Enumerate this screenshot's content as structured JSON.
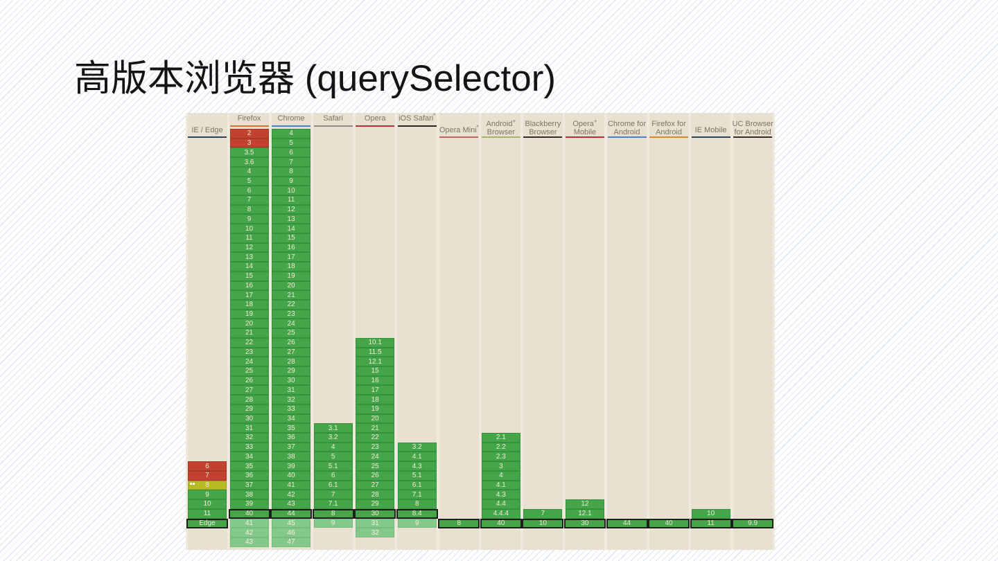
{
  "slide": {
    "title": "高版本浏览器 (querySelector)"
  },
  "table": {
    "feature": "querySelector",
    "status_colors": {
      "supported": "#45a549",
      "future": "#84c88a",
      "not_supported": "#c2422f",
      "partial": "#b6ba25",
      "current_border": "#1e1e1e",
      "lane": "#e8e1d1",
      "base": "#f0eadd",
      "header_text": "#7c7365"
    },
    "columns": [
      {
        "id": "ie-edge",
        "lines": [
          "IE / Edge"
        ],
        "sup": "",
        "underline": "#2a4058",
        "hstyle": "mid",
        "cells": [
          [
            "6",
            36,
            "n"
          ],
          [
            "7",
            37,
            "n"
          ],
          [
            "8",
            38,
            "p",
            "notes"
          ],
          [
            "9",
            39,
            "y"
          ],
          [
            "10",
            40,
            "y"
          ],
          [
            "11",
            41,
            "y"
          ],
          [
            "Edge",
            42,
            "cy"
          ]
        ]
      },
      {
        "id": "firefox",
        "lines": [
          "Firefox"
        ],
        "sup": "",
        "underline": "#d9702c",
        "hstyle": "top",
        "cells": [
          [
            "2",
            1,
            "n"
          ],
          [
            "3",
            2,
            "n"
          ],
          [
            "3.5",
            3,
            "y"
          ],
          [
            "3.6",
            4,
            "y"
          ],
          [
            "4",
            5,
            "y"
          ],
          [
            "5",
            6,
            "y"
          ],
          [
            "6",
            7,
            "y"
          ],
          [
            "7",
            8,
            "y"
          ],
          [
            "8",
            9,
            "y"
          ],
          [
            "9",
            10,
            "y"
          ],
          [
            "10",
            11,
            "y"
          ],
          [
            "11",
            12,
            "y"
          ],
          [
            "12",
            13,
            "y"
          ],
          [
            "13",
            14,
            "y"
          ],
          [
            "14",
            15,
            "y"
          ],
          [
            "15",
            16,
            "y"
          ],
          [
            "16",
            17,
            "y"
          ],
          [
            "17",
            18,
            "y"
          ],
          [
            "18",
            19,
            "y"
          ],
          [
            "19",
            20,
            "y"
          ],
          [
            "20",
            21,
            "y"
          ],
          [
            "21",
            22,
            "y"
          ],
          [
            "22",
            23,
            "y"
          ],
          [
            "23",
            24,
            "y"
          ],
          [
            "24",
            25,
            "y"
          ],
          [
            "25",
            26,
            "y"
          ],
          [
            "26",
            27,
            "y"
          ],
          [
            "27",
            28,
            "y"
          ],
          [
            "28",
            29,
            "y"
          ],
          [
            "29",
            30,
            "y"
          ],
          [
            "30",
            31,
            "y"
          ],
          [
            "31",
            32,
            "y"
          ],
          [
            "32",
            33,
            "y"
          ],
          [
            "33",
            34,
            "y"
          ],
          [
            "34",
            35,
            "y"
          ],
          [
            "35",
            36,
            "y"
          ],
          [
            "36",
            37,
            "y"
          ],
          [
            "37",
            38,
            "y"
          ],
          [
            "38",
            39,
            "y"
          ],
          [
            "39",
            40,
            "y"
          ],
          [
            "40",
            41,
            "cy"
          ],
          [
            "41",
            42,
            "f"
          ],
          [
            "42",
            43,
            "f"
          ],
          [
            "43",
            44,
            "f"
          ]
        ]
      },
      {
        "id": "chrome",
        "lines": [
          "Chrome"
        ],
        "sup": "",
        "underline": "#4a81c4",
        "hstyle": "top",
        "cells": [
          [
            "4",
            1,
            "y"
          ],
          [
            "5",
            2,
            "y"
          ],
          [
            "6",
            3,
            "y"
          ],
          [
            "7",
            4,
            "y"
          ],
          [
            "8",
            5,
            "y"
          ],
          [
            "9",
            6,
            "y"
          ],
          [
            "10",
            7,
            "y"
          ],
          [
            "11",
            8,
            "y"
          ],
          [
            "12",
            9,
            "y"
          ],
          [
            "13",
            10,
            "y"
          ],
          [
            "14",
            11,
            "y"
          ],
          [
            "15",
            12,
            "y"
          ],
          [
            "16",
            13,
            "y"
          ],
          [
            "17",
            14,
            "y"
          ],
          [
            "18",
            15,
            "y"
          ],
          [
            "19",
            16,
            "y"
          ],
          [
            "20",
            17,
            "y"
          ],
          [
            "21",
            18,
            "y"
          ],
          [
            "22",
            19,
            "y"
          ],
          [
            "23",
            20,
            "y"
          ],
          [
            "24",
            21,
            "y"
          ],
          [
            "25",
            22,
            "y"
          ],
          [
            "26",
            23,
            "y"
          ],
          [
            "27",
            24,
            "y"
          ],
          [
            "28",
            25,
            "y"
          ],
          [
            "29",
            26,
            "y"
          ],
          [
            "30",
            27,
            "y"
          ],
          [
            "31",
            28,
            "y"
          ],
          [
            "32",
            29,
            "y"
          ],
          [
            "33",
            30,
            "y"
          ],
          [
            "34",
            31,
            "y"
          ],
          [
            "35",
            32,
            "y"
          ],
          [
            "36",
            33,
            "y"
          ],
          [
            "37",
            34,
            "y"
          ],
          [
            "38",
            35,
            "y"
          ],
          [
            "39",
            36,
            "y"
          ],
          [
            "40",
            37,
            "y"
          ],
          [
            "41",
            38,
            "y"
          ],
          [
            "42",
            39,
            "y"
          ],
          [
            "43",
            40,
            "y"
          ],
          [
            "44",
            41,
            "cy"
          ],
          [
            "45",
            42,
            "f"
          ],
          [
            "46",
            43,
            "f"
          ],
          [
            "47",
            44,
            "f"
          ]
        ]
      },
      {
        "id": "safari",
        "lines": [
          "Safari"
        ],
        "sup": "",
        "underline": "#8b8b8b",
        "hstyle": "top",
        "cells": [
          [
            "3.1",
            32,
            "y"
          ],
          [
            "3.2",
            33,
            "y"
          ],
          [
            "4",
            34,
            "y"
          ],
          [
            "5",
            35,
            "y"
          ],
          [
            "5.1",
            36,
            "y"
          ],
          [
            "6",
            37,
            "y"
          ],
          [
            "6.1",
            38,
            "y"
          ],
          [
            "7",
            39,
            "y"
          ],
          [
            "7.1",
            40,
            "y"
          ],
          [
            "8",
            41,
            "cy"
          ],
          [
            "9",
            42,
            "f"
          ]
        ]
      },
      {
        "id": "opera",
        "lines": [
          "Opera"
        ],
        "sup": "",
        "underline": "#ab3530",
        "hstyle": "top",
        "cells": [
          [
            "10.1",
            23,
            "y"
          ],
          [
            "11.5",
            24,
            "y"
          ],
          [
            "12.1",
            25,
            "y"
          ],
          [
            "15",
            26,
            "y"
          ],
          [
            "16",
            27,
            "y"
          ],
          [
            "17",
            28,
            "y"
          ],
          [
            "18",
            29,
            "y"
          ],
          [
            "19",
            30,
            "y"
          ],
          [
            "20",
            31,
            "y"
          ],
          [
            "21",
            32,
            "y"
          ],
          [
            "22",
            33,
            "y"
          ],
          [
            "23",
            34,
            "y"
          ],
          [
            "24",
            35,
            "y"
          ],
          [
            "25",
            36,
            "y"
          ],
          [
            "26",
            37,
            "y"
          ],
          [
            "27",
            38,
            "y"
          ],
          [
            "28",
            39,
            "y"
          ],
          [
            "29",
            40,
            "y"
          ],
          [
            "30",
            41,
            "cy"
          ],
          [
            "31",
            42,
            "f"
          ],
          [
            "32",
            43,
            "f"
          ]
        ]
      },
      {
        "id": "ios-safari",
        "lines": [
          "iOS Safari"
        ],
        "sup": "*",
        "underline": "#262626",
        "hstyle": "top",
        "cells": [
          [
            "3.2",
            34,
            "y"
          ],
          [
            "4.1",
            35,
            "y"
          ],
          [
            "4.3",
            36,
            "y"
          ],
          [
            "5.1",
            37,
            "y"
          ],
          [
            "6.1",
            38,
            "y"
          ],
          [
            "7.1",
            39,
            "y"
          ],
          [
            "8",
            40,
            "y"
          ],
          [
            "8.4",
            41,
            "cy"
          ],
          [
            "9",
            42,
            "f"
          ]
        ]
      },
      {
        "id": "opera-mini",
        "lines": [
          "Opera Mini"
        ],
        "sup": "*",
        "underline": "#c3655c",
        "hstyle": "mid",
        "cells": [
          [
            "8",
            42,
            "cy"
          ]
        ]
      },
      {
        "id": "android-browser",
        "lines": [
          "Android",
          "Browser"
        ],
        "sup": "+",
        "underline": "#9cb865",
        "hstyle": "two",
        "cells": [
          [
            "2.1",
            33,
            "y"
          ],
          [
            "2.2",
            34,
            "y"
          ],
          [
            "2.3",
            35,
            "y"
          ],
          [
            "3",
            36,
            "y"
          ],
          [
            "4",
            37,
            "y"
          ],
          [
            "4.1",
            38,
            "y"
          ],
          [
            "4.3",
            39,
            "y"
          ],
          [
            "4.4",
            40,
            "y"
          ],
          [
            "4.4.4",
            41,
            "y"
          ],
          [
            "40",
            42,
            "cy"
          ]
        ]
      },
      {
        "id": "blackberry-browser",
        "lines": [
          "Blackberry",
          "Browser"
        ],
        "sup": "",
        "underline": "#2e2e2e",
        "hstyle": "two",
        "cells": [
          [
            "7",
            41,
            "y"
          ],
          [
            "10",
            42,
            "cy"
          ]
        ]
      },
      {
        "id": "opera-mobile",
        "lines": [
          "Opera",
          "Mobile"
        ],
        "sup": "+",
        "underline": "#ab3530",
        "hstyle": "two",
        "cells": [
          [
            "12",
            40,
            "y"
          ],
          [
            "12.1",
            41,
            "y"
          ],
          [
            "30",
            42,
            "cy"
          ]
        ]
      },
      {
        "id": "chrome-for-android",
        "lines": [
          "Chrome for",
          "Android"
        ],
        "sup": "",
        "underline": "#4a81c4",
        "hstyle": "two",
        "cells": [
          [
            "44",
            42,
            "cy"
          ]
        ]
      },
      {
        "id": "firefox-for-android",
        "lines": [
          "Firefox for",
          "Android"
        ],
        "sup": "",
        "underline": "#d9882c",
        "hstyle": "two",
        "cells": [
          [
            "40",
            42,
            "cy"
          ]
        ]
      },
      {
        "id": "ie-mobile",
        "lines": [
          "IE Mobile"
        ],
        "sup": "",
        "underline": "#2a4058",
        "hstyle": "mid",
        "cells": [
          [
            "10",
            41,
            "y"
          ],
          [
            "11",
            42,
            "cy"
          ]
        ]
      },
      {
        "id": "uc-browser",
        "lines": [
          "UC Browser",
          "for Android"
        ],
        "sup": "",
        "underline": "#2e2e2e",
        "hstyle": "two",
        "cells": [
          [
            "9.9",
            42,
            "cy"
          ]
        ]
      }
    ]
  }
}
